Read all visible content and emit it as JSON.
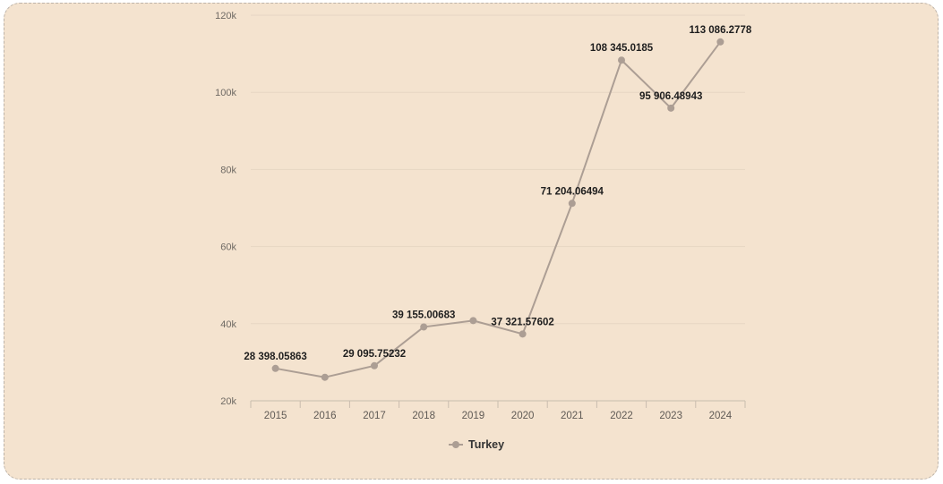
{
  "chart_data": {
    "type": "line",
    "title": "",
    "xlabel": "",
    "ylabel": "",
    "categories": [
      "2015",
      "2016",
      "2017",
      "2018",
      "2019",
      "2020",
      "2021",
      "2022",
      "2023",
      "2024"
    ],
    "series": [
      {
        "name": "Turkey",
        "values": [
          28398.05863,
          26100,
          29095.75232,
          39155.00683,
          40800,
          37321.57602,
          71204.06494,
          108345.0185,
          95906.48943,
          113086.2778
        ],
        "labels": [
          "28 398.05863",
          "",
          "29 095.75232",
          "39 155.00683",
          "",
          "37 321.57602",
          "71 204.06494",
          "108 345.0185",
          "95 906.48943",
          "113 086.2778"
        ]
      }
    ],
    "y_ticks": [
      20000,
      40000,
      60000,
      80000,
      100000,
      120000
    ],
    "y_tick_labels": [
      "20k",
      "40k",
      "60k",
      "80k",
      "100k",
      "120k"
    ],
    "ylim": [
      20000,
      120000
    ],
    "grid": true,
    "legend_position": "bottom-center",
    "colors": {
      "series": "#ac9e94",
      "grid": "#e6d6c3",
      "axis": "#c9bcae",
      "background": "#f4e3cf"
    }
  }
}
